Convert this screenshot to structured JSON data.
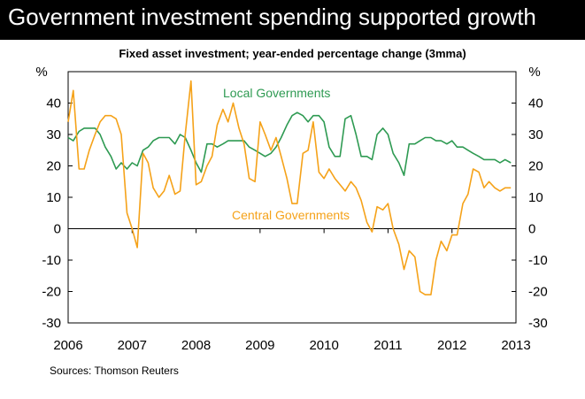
{
  "header": {
    "title": "Government investment spending supported growth"
  },
  "source_note": "Sources: Thomson Reuters",
  "chart_data": {
    "type": "line",
    "title": "Fixed asset investment; year-ended percentage change (3mma)",
    "ylabel_left": "%",
    "ylabel_right": "%",
    "xlabel": "",
    "ylim": [
      -30,
      50
    ],
    "yticks": [
      -30,
      -20,
      -10,
      0,
      10,
      20,
      30,
      40
    ],
    "xlim": [
      2006,
      2013
    ],
    "xticks": [
      2006,
      2007,
      2008,
      2009,
      2010,
      2011,
      2012,
      2013
    ],
    "grid": false,
    "colors": {
      "local": "#2e9a52",
      "central": "#f5a219"
    },
    "series": [
      {
        "name": "Local Governments",
        "key": "local",
        "x": [
          2006.0,
          2006.08,
          2006.17,
          2006.25,
          2006.33,
          2006.42,
          2006.5,
          2006.58,
          2006.67,
          2006.75,
          2006.83,
          2006.92,
          2007.0,
          2007.08,
          2007.17,
          2007.25,
          2007.33,
          2007.42,
          2007.5,
          2007.58,
          2007.67,
          2007.75,
          2007.83,
          2007.92,
          2008.0,
          2008.08,
          2008.17,
          2008.25,
          2008.33,
          2008.42,
          2008.5,
          2008.58,
          2008.67,
          2008.75,
          2008.83,
          2008.92,
          2009.0,
          2009.08,
          2009.17,
          2009.25,
          2009.33,
          2009.42,
          2009.5,
          2009.58,
          2009.67,
          2009.75,
          2009.83,
          2009.92,
          2010.0,
          2010.08,
          2010.17,
          2010.25,
          2010.33,
          2010.42,
          2010.5,
          2010.58,
          2010.67,
          2010.75,
          2010.83,
          2010.92,
          2011.0,
          2011.08,
          2011.17,
          2011.25,
          2011.33,
          2011.42,
          2011.5,
          2011.58,
          2011.67,
          2011.75,
          2011.83,
          2011.92,
          2012.0,
          2012.08,
          2012.17,
          2012.25,
          2012.33,
          2012.42,
          2012.5,
          2012.58,
          2012.67,
          2012.75,
          2012.83,
          2012.92
        ],
        "values": [
          29,
          28,
          31,
          32,
          32,
          32,
          30,
          26,
          23,
          19,
          21,
          19,
          21,
          20,
          25,
          26,
          28,
          29,
          29,
          29,
          27,
          30,
          29,
          25,
          21,
          18,
          27,
          27,
          26,
          27,
          28,
          28,
          28,
          28,
          26,
          25,
          24,
          23,
          24,
          26,
          29,
          33,
          36,
          37,
          36,
          34,
          36,
          36,
          34,
          26,
          23,
          23,
          35,
          36,
          30,
          23,
          23,
          22,
          30,
          32,
          30,
          24,
          21,
          17,
          27,
          27,
          28,
          29,
          29,
          28,
          28,
          27,
          28,
          26,
          26,
          25,
          24,
          23,
          22,
          22,
          22,
          21,
          22,
          21
        ]
      },
      {
        "name": "Central Governments",
        "key": "central",
        "x": [
          2006.0,
          2006.08,
          2006.17,
          2006.25,
          2006.33,
          2006.42,
          2006.5,
          2006.58,
          2006.67,
          2006.75,
          2006.83,
          2006.92,
          2007.0,
          2007.08,
          2007.17,
          2007.25,
          2007.33,
          2007.42,
          2007.5,
          2007.58,
          2007.67,
          2007.75,
          2007.83,
          2007.92,
          2008.0,
          2008.08,
          2008.17,
          2008.25,
          2008.33,
          2008.42,
          2008.5,
          2008.58,
          2008.67,
          2008.75,
          2008.83,
          2008.92,
          2009.0,
          2009.08,
          2009.17,
          2009.25,
          2009.33,
          2009.42,
          2009.5,
          2009.58,
          2009.67,
          2009.75,
          2009.83,
          2009.92,
          2010.0,
          2010.08,
          2010.17,
          2010.25,
          2010.33,
          2010.42,
          2010.5,
          2010.58,
          2010.67,
          2010.75,
          2010.83,
          2010.92,
          2011.0,
          2011.08,
          2011.17,
          2011.25,
          2011.33,
          2011.42,
          2011.5,
          2011.58,
          2011.67,
          2011.75,
          2011.83,
          2011.92,
          2012.0,
          2012.08,
          2012.17,
          2012.25,
          2012.33,
          2012.42,
          2012.5,
          2012.58,
          2012.67,
          2012.75,
          2012.83,
          2012.92
        ],
        "values": [
          34,
          44,
          19,
          19,
          25,
          30,
          34,
          36,
          36,
          35,
          30,
          5,
          0,
          -6,
          24,
          21,
          13,
          10,
          12,
          17,
          11,
          12,
          30,
          47,
          14,
          15,
          20,
          23,
          33,
          38,
          34,
          40,
          32,
          27,
          16,
          15,
          34,
          30,
          25,
          29,
          23,
          16,
          8,
          8,
          24,
          25,
          34,
          18,
          16,
          19,
          16,
          14,
          12,
          15,
          13,
          9,
          2,
          -1,
          7,
          6,
          8,
          0,
          -5,
          -13,
          -7,
          -9,
          -20,
          -21,
          -21,
          -10,
          -4,
          -7,
          -2,
          -2,
          8,
          11,
          19,
          18,
          13,
          15,
          13,
          12,
          13,
          13
        ]
      }
    ],
    "annotations": [
      {
        "text": "Local Governments",
        "series": "local"
      },
      {
        "text": "Central Governments",
        "series": "central"
      }
    ]
  }
}
